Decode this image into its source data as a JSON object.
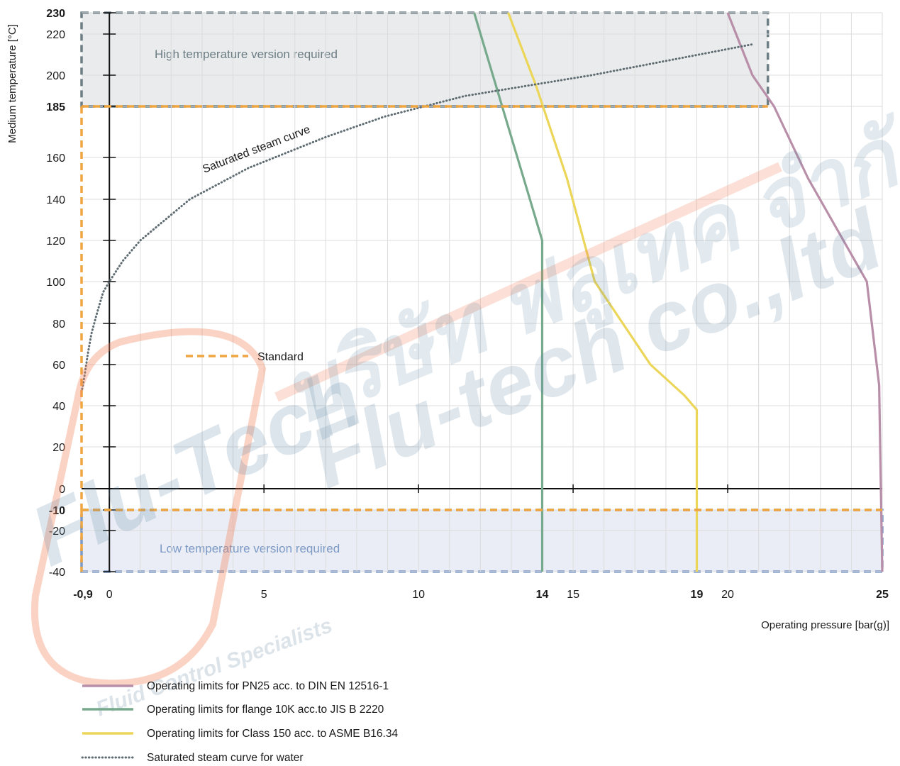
{
  "watermark": {
    "thai": "บริษัท ฟลูเทค จำกัด",
    "english": "Flu-tech co.,ltd",
    "logo": "Flu-Tech",
    "tagline": "Fluid Control Specialists"
  },
  "chart_data": {
    "type": "line",
    "xlabel": "Operating pressure [bar(g)]",
    "ylabel": "Medium temperature [°C]",
    "xlim": [
      -0.9,
      25
    ],
    "ylim": [
      -40,
      230
    ],
    "x_ticks": [
      {
        "value": -0.9,
        "label": "-0,9",
        "bold": true
      },
      {
        "value": 0,
        "label": "0",
        "bold": false
      },
      {
        "value": 5,
        "label": "5",
        "bold": false
      },
      {
        "value": 10,
        "label": "10",
        "bold": false
      },
      {
        "value": 14,
        "label": "14",
        "bold": true
      },
      {
        "value": 15,
        "label": "15",
        "bold": false
      },
      {
        "value": 19,
        "label": "19",
        "bold": true
      },
      {
        "value": 20,
        "label": "20",
        "bold": false
      },
      {
        "value": 25,
        "label": "25",
        "bold": true
      }
    ],
    "y_ticks": [
      {
        "value": 230,
        "label": "230",
        "bold": true
      },
      {
        "value": 220,
        "label": "220",
        "bold": false
      },
      {
        "value": 200,
        "label": "200",
        "bold": false
      },
      {
        "value": 185,
        "label": "185",
        "bold": true
      },
      {
        "value": 160,
        "label": "160",
        "bold": false
      },
      {
        "value": 140,
        "label": "140",
        "bold": false
      },
      {
        "value": 120,
        "label": "120",
        "bold": false
      },
      {
        "value": 100,
        "label": "100",
        "bold": false
      },
      {
        "value": 80,
        "label": "80",
        "bold": false
      },
      {
        "value": 60,
        "label": "60",
        "bold": false
      },
      {
        "value": 40,
        "label": "40",
        "bold": false
      },
      {
        "value": 20,
        "label": "20",
        "bold": false
      },
      {
        "value": 0,
        "label": "0",
        "bold": false
      },
      {
        "value": -10,
        "label": "-10",
        "bold": true
      },
      {
        "value": -20,
        "label": "-20",
        "bold": false
      },
      {
        "value": -40,
        "label": "-40",
        "bold": false
      }
    ],
    "grid": true,
    "regions": [
      {
        "key": "high",
        "label": "High temperature version required",
        "x": [
          -0.9,
          21.3
        ],
        "y": [
          185,
          230
        ],
        "fill": "#e9ebec",
        "text_color": "#6c7d84",
        "border": "#6c7d84"
      },
      {
        "key": "low",
        "label": "Low temperature version required",
        "x": [
          -0.9,
          25
        ],
        "y": [
          -40,
          -10
        ],
        "fill": "#eaedf5",
        "text_color": "#7c9ac6",
        "border": "#7c9ac6"
      }
    ],
    "standard_boundary": {
      "label": "Standard",
      "color": "#f0a640",
      "x": [
        -0.9,
        -0.9,
        21.3,
        21.3,
        25,
        25
      ],
      "y": [
        -10,
        185,
        185,
        185,
        -10,
        -10
      ]
    },
    "series": [
      {
        "name": "Operating limits for PN25 acc. to DIN EN 12516-1",
        "color": "#b88ea8",
        "style": "solid",
        "x": [
          20,
          20.8,
          21.5,
          22.6,
          24.5,
          24.9,
          25
        ],
        "y": [
          230,
          200,
          185,
          150,
          100,
          50,
          -40
        ]
      },
      {
        "name": "Operating limits for flange 10K acc.to JIS B 2220",
        "color": "#77a98c",
        "style": "solid",
        "x": [
          11.8,
          14,
          14
        ],
        "y": [
          230,
          120,
          -40
        ]
      },
      {
        "name": "Operating limits for Class 150 acc. to ASME B16.34",
        "color": "#ecd65a",
        "style": "solid",
        "x": [
          12.9,
          13.8,
          14.8,
          15.7,
          17.5,
          18.6,
          19,
          19
        ],
        "y": [
          230,
          195,
          150,
          100,
          60,
          45,
          38,
          -40
        ]
      },
      {
        "name": "Saturated steam curve for water",
        "label": "Saturated steam curve",
        "color": "#5e6c72",
        "style": "dotted",
        "x": [
          -0.9,
          -0.8,
          -0.7,
          -0.58,
          -0.4,
          -0.2,
          0,
          0.43,
          1.0,
          2.6,
          4.5,
          7.0,
          8.9,
          11.5,
          15.6,
          20.8
        ],
        "y": [
          46.5,
          55,
          65,
          75,
          85,
          95,
          100,
          110,
          120,
          140,
          155,
          170,
          180,
          190,
          200,
          215
        ]
      }
    ]
  }
}
